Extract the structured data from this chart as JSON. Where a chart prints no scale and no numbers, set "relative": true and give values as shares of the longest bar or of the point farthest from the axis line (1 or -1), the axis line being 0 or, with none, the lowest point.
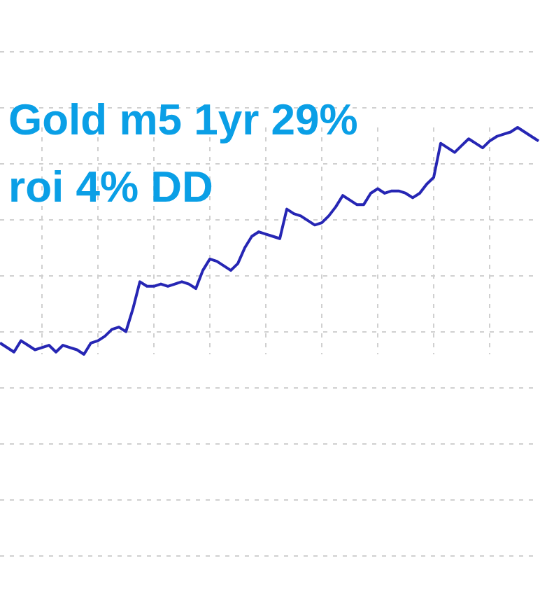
{
  "chart_data": {
    "type": "line",
    "title": "Gold m5 1yr 29%\nroi 4% DD",
    "relative": true,
    "grid": true,
    "marker": "none",
    "line_style": "solid",
    "categories": [
      null,
      null,
      null,
      null,
      null,
      null,
      null,
      null,
      null,
      null,
      null,
      null,
      null,
      null,
      null,
      null,
      null,
      null,
      null,
      null,
      null,
      null,
      null,
      null,
      null,
      null,
      null,
      null,
      null,
      null,
      null,
      null,
      null,
      null,
      null,
      null,
      null,
      null,
      null,
      null,
      null,
      null,
      null,
      null,
      null,
      null,
      null,
      null,
      null,
      null,
      null,
      null,
      null,
      null,
      null,
      null,
      null,
      null,
      null,
      null,
      null,
      null,
      null,
      null,
      null,
      null,
      null,
      null,
      null,
      null,
      null,
      null,
      null,
      null,
      null,
      null,
      null,
      null
    ],
    "series": [
      {
        "color": "#2626b4",
        "values": [
          0.05,
          0.03,
          0.01,
          0.06,
          0.04,
          0.02,
          0.03,
          0.04,
          0.01,
          0.04,
          0.03,
          0.02,
          0,
          0.05,
          0.06,
          0.08,
          0.11,
          0.12,
          0.1,
          0.2,
          0.32,
          0.3,
          0.3,
          0.31,
          0.3,
          0.31,
          0.32,
          0.31,
          0.29,
          0.37,
          0.42,
          0.41,
          0.39,
          0.37,
          0.4,
          0.47,
          0.52,
          0.54,
          0.53,
          0.52,
          0.51,
          0.64,
          0.62,
          0.61,
          0.59,
          0.57,
          0.58,
          0.61,
          0.65,
          0.7,
          0.68,
          0.66,
          0.66,
          0.71,
          0.73,
          0.71,
          0.72,
          0.72,
          0.71,
          0.69,
          0.71,
          0.75,
          0.78,
          0.93,
          0.91,
          0.89,
          0.92,
          0.95,
          0.93,
          0.91,
          0.94,
          0.96,
          0.97,
          0.98,
          1,
          0.98,
          0.96,
          0.94
        ]
      }
    ]
  }
}
